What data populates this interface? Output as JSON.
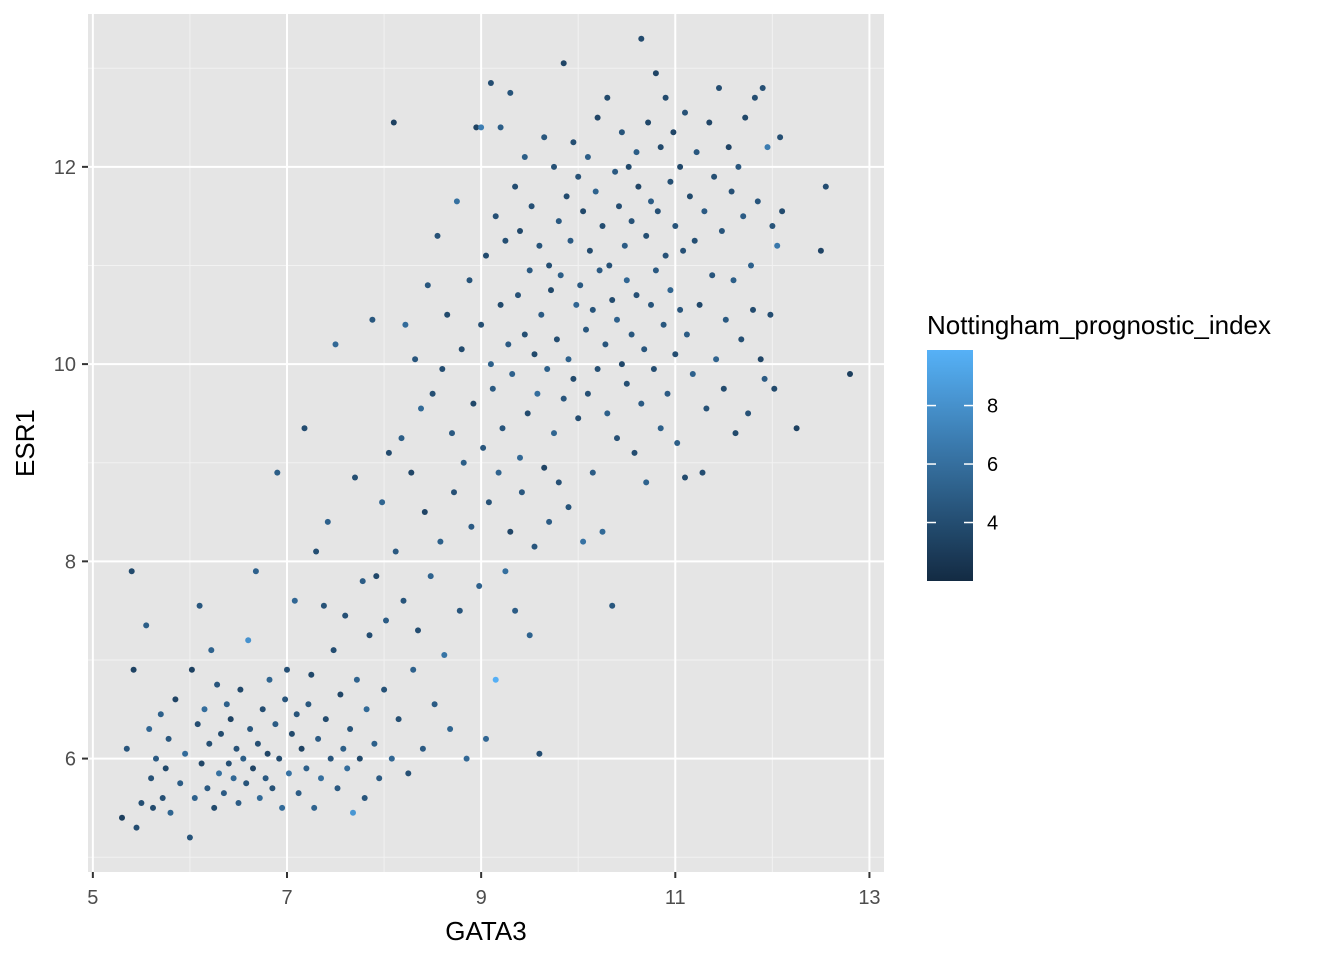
{
  "chart_data": {
    "type": "scatter",
    "title": "",
    "xlabel": "GATA3",
    "ylabel": "ESR1",
    "xlim": [
      4.95,
      13.15
    ],
    "ylim": [
      4.85,
      13.55
    ],
    "x_ticks": [
      "5",
      "7",
      "9",
      "11",
      "13"
    ],
    "x_tick_values": [
      5,
      7,
      9,
      11,
      13
    ],
    "y_ticks": [
      "6",
      "8",
      "10",
      "12"
    ],
    "y_tick_values": [
      6,
      8,
      10,
      12
    ],
    "grid": true,
    "background": "#e5e5e5",
    "legend": {
      "title": "Nottingham_prognostic_index",
      "position": "right",
      "range": [
        2.0,
        9.9
      ],
      "ticks": [
        "4",
        "6",
        "8"
      ],
      "tick_values": [
        4,
        6,
        8
      ],
      "low_color": "#132b43",
      "high_color": "#56b1f7"
    },
    "n_points": 1904,
    "points_note": "points listed are a representative sample of the visible cloud",
    "points": [
      [
        5.3,
        5.4,
        3.2
      ],
      [
        5.35,
        6.1,
        4.5
      ],
      [
        5.4,
        7.9,
        3.8
      ],
      [
        5.42,
        6.9,
        3.4
      ],
      [
        5.45,
        5.3,
        4.0
      ],
      [
        5.5,
        5.55,
        4.1
      ],
      [
        5.55,
        7.35,
        5.0
      ],
      [
        5.58,
        6.3,
        5.5
      ],
      [
        5.6,
        5.8,
        4.3
      ],
      [
        5.62,
        5.5,
        3.9
      ],
      [
        5.65,
        6.0,
        4.8
      ],
      [
        5.7,
        6.45,
        5.1
      ],
      [
        5.72,
        5.6,
        4.2
      ],
      [
        5.75,
        5.9,
        3.7
      ],
      [
        5.78,
        6.2,
        4.6
      ],
      [
        5.8,
        5.45,
        5.4
      ],
      [
        5.85,
        6.6,
        3.5
      ],
      [
        5.9,
        5.75,
        4.9
      ],
      [
        5.95,
        6.05,
        5.8
      ],
      [
        6.0,
        5.2,
        4.4
      ],
      [
        6.02,
        6.9,
        3.3
      ],
      [
        6.05,
        5.6,
        5.2
      ],
      [
        6.08,
        6.35,
        4.0
      ],
      [
        6.1,
        7.55,
        4.6
      ],
      [
        6.12,
        5.95,
        3.6
      ],
      [
        6.15,
        6.5,
        5.9
      ],
      [
        6.18,
        5.7,
        4.7
      ],
      [
        6.2,
        6.15,
        4.1
      ],
      [
        6.22,
        7.1,
        5.3
      ],
      [
        6.25,
        5.5,
        3.8
      ],
      [
        6.28,
        6.75,
        4.5
      ],
      [
        6.3,
        5.85,
        6.1
      ],
      [
        6.32,
        6.25,
        3.9
      ],
      [
        6.35,
        5.65,
        4.8
      ],
      [
        6.38,
        6.55,
        5.1
      ],
      [
        6.4,
        5.95,
        4.2
      ],
      [
        6.42,
        6.4,
        3.4
      ],
      [
        6.45,
        5.8,
        5.6
      ],
      [
        6.48,
        6.1,
        4.3
      ],
      [
        6.5,
        5.55,
        4.9
      ],
      [
        6.52,
        6.7,
        3.7
      ],
      [
        6.55,
        6.0,
        5.0
      ],
      [
        6.58,
        5.75,
        4.4
      ],
      [
        6.6,
        7.2,
        8.1
      ],
      [
        6.62,
        6.3,
        4.6
      ],
      [
        6.65,
        5.9,
        3.5
      ],
      [
        6.68,
        7.9,
        5.2
      ],
      [
        6.7,
        6.15,
        4.1
      ],
      [
        6.72,
        5.6,
        5.7
      ],
      [
        6.75,
        6.5,
        4.0
      ],
      [
        6.78,
        5.8,
        4.7
      ],
      [
        6.8,
        6.05,
        3.6
      ],
      [
        6.82,
        6.8,
        5.4
      ],
      [
        6.85,
        5.7,
        4.3
      ],
      [
        6.88,
        6.35,
        4.9
      ],
      [
        6.9,
        8.9,
        5.0
      ],
      [
        6.92,
        6.0,
        3.9
      ],
      [
        6.95,
        5.5,
        5.8
      ],
      [
        6.98,
        6.6,
        4.5
      ],
      [
        7.0,
        6.9,
        4.2
      ],
      [
        7.02,
        5.85,
        6.2
      ],
      [
        7.05,
        6.25,
        3.8
      ],
      [
        7.08,
        7.6,
        5.5
      ],
      [
        7.1,
        6.45,
        4.4
      ],
      [
        7.12,
        5.65,
        4.9
      ],
      [
        7.15,
        6.1,
        3.4
      ],
      [
        7.18,
        9.35,
        4.0
      ],
      [
        7.2,
        5.9,
        5.1
      ],
      [
        7.22,
        6.55,
        4.6
      ],
      [
        7.25,
        6.85,
        3.7
      ],
      [
        7.28,
        5.5,
        5.3
      ],
      [
        7.3,
        8.1,
        4.1
      ],
      [
        7.32,
        6.2,
        4.8
      ],
      [
        7.35,
        5.8,
        6.0
      ],
      [
        7.38,
        7.55,
        4.3
      ],
      [
        7.4,
        6.4,
        3.9
      ],
      [
        7.42,
        8.4,
        5.2
      ],
      [
        7.45,
        6.0,
        4.5
      ],
      [
        7.48,
        7.1,
        4.0
      ],
      [
        7.5,
        10.2,
        5.6
      ],
      [
        7.52,
        5.7,
        4.7
      ],
      [
        7.55,
        6.65,
        3.6
      ],
      [
        7.58,
        6.1,
        5.0
      ],
      [
        7.6,
        7.45,
        4.2
      ],
      [
        7.62,
        5.9,
        5.9
      ],
      [
        7.65,
        6.3,
        4.4
      ],
      [
        7.68,
        5.45,
        8.3
      ],
      [
        7.7,
        8.85,
        4.1
      ],
      [
        7.72,
        6.8,
        5.3
      ],
      [
        7.75,
        6.0,
        3.8
      ],
      [
        7.78,
        7.8,
        4.9
      ],
      [
        7.8,
        5.6,
        4.5
      ],
      [
        7.82,
        6.5,
        5.7
      ],
      [
        7.85,
        7.25,
        4.0
      ],
      [
        7.88,
        10.45,
        4.6
      ],
      [
        7.9,
        6.15,
        5.1
      ],
      [
        7.92,
        7.85,
        3.7
      ],
      [
        7.95,
        5.8,
        4.8
      ],
      [
        7.98,
        8.6,
        5.4
      ],
      [
        8.0,
        6.7,
        4.3
      ],
      [
        8.02,
        7.4,
        4.9
      ],
      [
        8.05,
        9.1,
        3.9
      ],
      [
        8.08,
        6.0,
        5.5
      ],
      [
        8.1,
        12.45,
        3.3
      ],
      [
        8.12,
        8.1,
        4.7
      ],
      [
        8.15,
        6.4,
        4.1
      ],
      [
        8.18,
        9.25,
        5.0
      ],
      [
        8.2,
        7.6,
        4.4
      ],
      [
        8.22,
        10.4,
        5.8
      ],
      [
        8.25,
        5.85,
        4.2
      ],
      [
        8.28,
        8.9,
        3.6
      ],
      [
        8.3,
        6.9,
        5.2
      ],
      [
        8.32,
        10.05,
        4.5
      ],
      [
        8.35,
        7.3,
        4.0
      ],
      [
        8.38,
        9.55,
        5.7
      ],
      [
        8.4,
        6.1,
        4.8
      ],
      [
        8.42,
        8.5,
        3.5
      ],
      [
        8.45,
        10.8,
        4.6
      ],
      [
        8.48,
        7.85,
        5.3
      ],
      [
        8.5,
        9.7,
        4.1
      ],
      [
        8.52,
        6.55,
        4.9
      ],
      [
        8.55,
        11.3,
        4.3
      ],
      [
        8.58,
        8.2,
        5.1
      ],
      [
        8.6,
        9.95,
        4.0
      ],
      [
        8.62,
        7.05,
        6.3
      ],
      [
        8.65,
        10.5,
        3.8
      ],
      [
        8.68,
        6.3,
        5.4
      ],
      [
        8.7,
        9.3,
        4.7
      ],
      [
        8.72,
        8.7,
        4.2
      ],
      [
        8.75,
        11.65,
        6.1
      ],
      [
        8.78,
        7.5,
        4.5
      ],
      [
        8.8,
        10.15,
        3.9
      ],
      [
        8.82,
        9.0,
        5.0
      ],
      [
        8.85,
        6.0,
        5.6
      ],
      [
        8.88,
        10.85,
        4.4
      ],
      [
        8.9,
        8.35,
        4.8
      ],
      [
        8.92,
        9.6,
        3.7
      ],
      [
        8.95,
        12.4,
        3.4
      ],
      [
        8.98,
        7.75,
        5.2
      ],
      [
        9.0,
        10.4,
        4.1
      ],
      [
        9.0,
        12.4,
        6.9
      ],
      [
        9.02,
        9.15,
        4.6
      ],
      [
        9.05,
        11.1,
        3.9
      ],
      [
        9.05,
        6.2,
        5.5
      ],
      [
        9.08,
        8.6,
        4.3
      ],
      [
        9.1,
        10.0,
        5.1
      ],
      [
        9.1,
        12.85,
        4.0
      ],
      [
        9.12,
        9.75,
        4.7
      ],
      [
        9.15,
        6.8,
        9.8
      ],
      [
        9.15,
        11.5,
        4.2
      ],
      [
        9.18,
        8.9,
        5.3
      ],
      [
        9.2,
        10.6,
        3.8
      ],
      [
        9.2,
        12.4,
        5.0
      ],
      [
        9.22,
        9.35,
        4.5
      ],
      [
        9.25,
        7.9,
        6.0
      ],
      [
        9.25,
        11.25,
        4.1
      ],
      [
        9.28,
        10.2,
        4.8
      ],
      [
        9.3,
        8.3,
        3.6
      ],
      [
        9.3,
        12.75,
        4.4
      ],
      [
        9.32,
        9.9,
        5.2
      ],
      [
        9.35,
        11.8,
        4.0
      ],
      [
        9.35,
        7.5,
        4.9
      ],
      [
        9.38,
        10.7,
        4.3
      ],
      [
        9.4,
        9.05,
        5.6
      ],
      [
        9.4,
        11.35,
        3.7
      ],
      [
        9.42,
        8.7,
        4.6
      ],
      [
        9.45,
        10.3,
        4.1
      ],
      [
        9.45,
        12.1,
        5.0
      ],
      [
        9.48,
        9.5,
        3.9
      ],
      [
        9.5,
        10.95,
        4.7
      ],
      [
        9.5,
        7.25,
        5.3
      ],
      [
        9.52,
        11.6,
        4.2
      ],
      [
        9.55,
        8.15,
        4.5
      ],
      [
        9.55,
        10.1,
        3.8
      ],
      [
        9.58,
        9.7,
        5.9
      ],
      [
        9.6,
        11.2,
        4.4
      ],
      [
        9.6,
        6.05,
        4.0
      ],
      [
        9.62,
        10.5,
        4.8
      ],
      [
        9.65,
        8.95,
        3.5
      ],
      [
        9.65,
        12.3,
        4.6
      ],
      [
        9.68,
        9.95,
        5.1
      ],
      [
        9.7,
        11.0,
        4.1
      ],
      [
        9.7,
        8.4,
        4.9
      ],
      [
        9.72,
        10.75,
        3.7
      ],
      [
        9.75,
        12.0,
        4.3
      ],
      [
        9.75,
        9.3,
        5.4
      ],
      [
        9.78,
        10.25,
        4.0
      ],
      [
        9.8,
        11.45,
        4.7
      ],
      [
        9.8,
        8.8,
        4.2
      ],
      [
        9.82,
        10.9,
        5.0
      ],
      [
        9.85,
        13.05,
        3.6
      ],
      [
        9.85,
        9.65,
        4.5
      ],
      [
        9.88,
        11.7,
        3.9
      ],
      [
        9.9,
        10.05,
        5.2
      ],
      [
        9.9,
        8.55,
        4.4
      ],
      [
        9.92,
        11.25,
        4.8
      ],
      [
        9.95,
        9.85,
        3.8
      ],
      [
        9.95,
        12.25,
        4.1
      ],
      [
        9.98,
        10.6,
        5.5
      ],
      [
        10.0,
        11.9,
        4.3
      ],
      [
        10.0,
        9.45,
        4.0
      ],
      [
        10.02,
        10.8,
        4.7
      ],
      [
        10.05,
        8.2,
        6.2
      ],
      [
        10.05,
        11.55,
        3.7
      ],
      [
        10.08,
        10.35,
        4.6
      ],
      [
        10.1,
        12.1,
        5.0
      ],
      [
        10.1,
        9.7,
        4.2
      ],
      [
        10.12,
        11.15,
        3.9
      ],
      [
        10.15,
        8.9,
        4.9
      ],
      [
        10.15,
        10.55,
        4.4
      ],
      [
        10.18,
        11.75,
        5.3
      ],
      [
        10.2,
        9.95,
        4.1
      ],
      [
        10.2,
        12.5,
        3.6
      ],
      [
        10.22,
        10.95,
        4.8
      ],
      [
        10.25,
        8.3,
        5.7
      ],
      [
        10.25,
        11.4,
        4.0
      ],
      [
        10.28,
        10.2,
        4.5
      ],
      [
        10.3,
        12.7,
        3.8
      ],
      [
        10.3,
        9.5,
        5.1
      ],
      [
        10.32,
        11.0,
        4.3
      ],
      [
        10.35,
        7.55,
        4.6
      ],
      [
        10.35,
        10.65,
        3.9
      ],
      [
        10.38,
        11.95,
        4.7
      ],
      [
        10.4,
        9.25,
        4.2
      ],
      [
        10.4,
        10.45,
        5.2
      ],
      [
        10.42,
        11.6,
        4.0
      ],
      [
        10.45,
        12.35,
        4.4
      ],
      [
        10.45,
        10.0,
        3.7
      ],
      [
        10.48,
        11.2,
        4.9
      ],
      [
        10.5,
        9.8,
        4.1
      ],
      [
        10.5,
        10.85,
        5.5
      ],
      [
        10.52,
        12.0,
        3.8
      ],
      [
        10.55,
        10.3,
        4.6
      ],
      [
        10.55,
        11.45,
        4.3
      ],
      [
        10.58,
        9.1,
        4.0
      ],
      [
        10.6,
        12.15,
        5.0
      ],
      [
        10.6,
        10.7,
        4.2
      ],
      [
        10.62,
        11.8,
        3.6
      ],
      [
        10.65,
        9.6,
        4.8
      ],
      [
        10.65,
        13.3,
        3.9
      ],
      [
        10.68,
        10.15,
        4.5
      ],
      [
        10.7,
        11.3,
        4.1
      ],
      [
        10.7,
        8.8,
        5.3
      ],
      [
        10.72,
        12.45,
        3.7
      ],
      [
        10.75,
        10.6,
        4.4
      ],
      [
        10.75,
        11.65,
        4.9
      ],
      [
        10.78,
        9.95,
        4.0
      ],
      [
        10.8,
        12.95,
        3.5
      ],
      [
        10.8,
        10.95,
        4.7
      ],
      [
        10.82,
        11.55,
        4.2
      ],
      [
        10.85,
        9.35,
        5.1
      ],
      [
        10.85,
        12.2,
        3.8
      ],
      [
        10.88,
        10.4,
        4.6
      ],
      [
        10.9,
        11.1,
        4.3
      ],
      [
        10.9,
        12.7,
        3.9
      ],
      [
        10.92,
        9.7,
        4.8
      ],
      [
        10.95,
        11.85,
        4.1
      ],
      [
        10.95,
        10.75,
        5.4
      ],
      [
        10.98,
        12.35,
        3.6
      ],
      [
        11.0,
        11.4,
        4.4
      ],
      [
        11.0,
        10.1,
        4.0
      ],
      [
        11.02,
        9.2,
        5.0
      ],
      [
        11.05,
        12.0,
        3.7
      ],
      [
        11.05,
        10.55,
        4.5
      ],
      [
        11.08,
        11.15,
        4.2
      ],
      [
        11.1,
        8.85,
        3.9
      ],
      [
        11.1,
        12.55,
        4.3
      ],
      [
        11.12,
        10.3,
        4.9
      ],
      [
        11.15,
        11.7,
        3.8
      ],
      [
        11.18,
        9.9,
        5.2
      ],
      [
        11.2,
        11.25,
        4.1
      ],
      [
        11.22,
        12.15,
        4.6
      ],
      [
        11.25,
        10.6,
        3.7
      ],
      [
        11.28,
        8.9,
        4.0
      ],
      [
        11.3,
        11.55,
        4.8
      ],
      [
        11.32,
        9.55,
        4.3
      ],
      [
        11.35,
        12.45,
        3.6
      ],
      [
        11.38,
        10.9,
        4.5
      ],
      [
        11.4,
        11.9,
        4.1
      ],
      [
        11.42,
        10.05,
        5.3
      ],
      [
        11.45,
        12.8,
        4.0
      ],
      [
        11.48,
        11.35,
        4.4
      ],
      [
        11.5,
        9.75,
        3.9
      ],
      [
        11.52,
        10.45,
        4.7
      ],
      [
        11.55,
        12.2,
        3.5
      ],
      [
        11.58,
        11.75,
        4.2
      ],
      [
        11.6,
        10.85,
        5.0
      ],
      [
        11.62,
        9.3,
        3.8
      ],
      [
        11.65,
        12.0,
        4.6
      ],
      [
        11.68,
        10.25,
        4.1
      ],
      [
        11.7,
        11.5,
        4.9
      ],
      [
        11.72,
        12.5,
        3.7
      ],
      [
        11.75,
        9.5,
        4.3
      ],
      [
        11.78,
        11.0,
        5.2
      ],
      [
        11.8,
        10.55,
        3.9
      ],
      [
        11.82,
        12.7,
        4.0
      ],
      [
        11.85,
        11.65,
        4.5
      ],
      [
        11.88,
        10.05,
        3.6
      ],
      [
        11.9,
        12.8,
        4.2
      ],
      [
        11.92,
        9.85,
        4.8
      ],
      [
        11.95,
        12.2,
        6.8
      ],
      [
        11.98,
        10.5,
        4.0
      ],
      [
        12.0,
        11.4,
        4.4
      ],
      [
        12.02,
        9.75,
        3.8
      ],
      [
        12.05,
        11.2,
        6.5
      ],
      [
        12.08,
        12.3,
        4.1
      ],
      [
        12.1,
        11.55,
        3.9
      ],
      [
        12.25,
        9.35,
        3.3
      ],
      [
        12.5,
        11.15,
        3.5
      ],
      [
        12.55,
        11.8,
        4.0
      ],
      [
        12.8,
        9.9,
        3.2
      ]
    ]
  }
}
